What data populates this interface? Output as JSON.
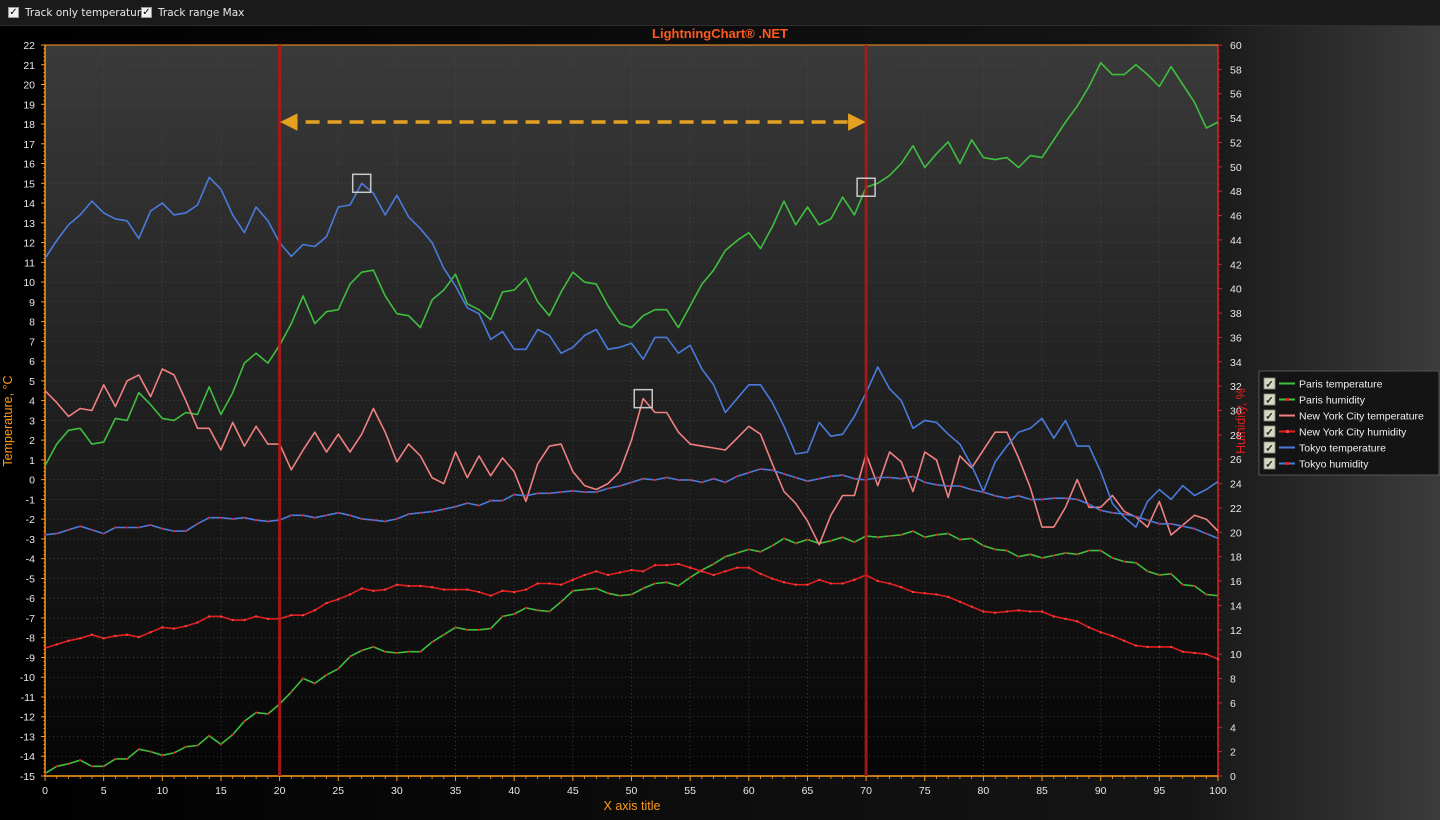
{
  "toolbar": {
    "track_temperature": {
      "label": "Track only temperature",
      "checked": true
    },
    "track_range_max": {
      "label": "Track range Max",
      "checked": true
    }
  },
  "chart_data": {
    "type": "line",
    "title": "LightningChart® .NET",
    "xlabel": "X axis title",
    "ylabel_left": "Temperature, °C",
    "ylabel_right": "Humidity, %",
    "xlim": [
      0,
      100
    ],
    "ylim_left": [
      -15,
      22
    ],
    "ylim_right": [
      0,
      60
    ],
    "x_ticks": [
      0,
      5,
      10,
      15,
      20,
      25,
      30,
      35,
      40,
      45,
      50,
      55,
      60,
      65,
      70,
      75,
      80,
      85,
      90,
      95,
      100
    ],
    "grid": true,
    "legend_position": "right",
    "cursors": [
      20,
      70
    ],
    "markers": [
      {
        "x": 27,
        "y": 15.0
      },
      {
        "x": 51,
        "y": 4.1
      },
      {
        "x": 70,
        "y": 14.8
      }
    ],
    "x": [
      0,
      1,
      2,
      3,
      4,
      5,
      6,
      7,
      8,
      9,
      10,
      11,
      12,
      13,
      14,
      15,
      16,
      17,
      18,
      19,
      20,
      21,
      22,
      23,
      24,
      25,
      26,
      27,
      28,
      29,
      30,
      31,
      32,
      33,
      34,
      35,
      36,
      37,
      38,
      39,
      40,
      41,
      42,
      43,
      44,
      45,
      46,
      47,
      48,
      49,
      50,
      51,
      52,
      53,
      54,
      55,
      56,
      57,
      58,
      59,
      60,
      61,
      62,
      63,
      64,
      65,
      66,
      67,
      68,
      69,
      70,
      71,
      72,
      73,
      74,
      75,
      76,
      77,
      78,
      79,
      80,
      81,
      82,
      83,
      84,
      85,
      86,
      87,
      88,
      89,
      90,
      91,
      92,
      93,
      94,
      95,
      96,
      97,
      98,
      99,
      100
    ],
    "series": [
      {
        "name": "Paris temperature",
        "axis": "left",
        "color": "#3fbf3f",
        "values": [
          0.7,
          1.8,
          2.5,
          2.6,
          1.8,
          1.9,
          3.1,
          3.0,
          4.4,
          3.8,
          3.1,
          3.0,
          3.4,
          3.3,
          4.7,
          3.3,
          4.4,
          5.9,
          6.4,
          5.9,
          6.8,
          7.9,
          9.3,
          7.9,
          8.5,
          8.6,
          9.9,
          10.5,
          10.6,
          9.3,
          8.4,
          8.3,
          7.7,
          9.1,
          9.6,
          10.4,
          8.9,
          8.6,
          8.1,
          9.5,
          9.6,
          10.2,
          9.0,
          8.3,
          9.5,
          10.5,
          10.0,
          9.9,
          8.8,
          7.9,
          7.7,
          8.3,
          8.6,
          8.6,
          7.7,
          8.8,
          9.9,
          10.6,
          11.6,
          12.1,
          12.5,
          11.7,
          12.8,
          14.1,
          12.9,
          13.8,
          12.9,
          13.2,
          14.3,
          13.4,
          14.8,
          15.0,
          15.4,
          16.0,
          16.9,
          15.8,
          16.5,
          17.1,
          16.0,
          17.2,
          16.3,
          16.2,
          16.3,
          15.8,
          16.4,
          16.3,
          17.2,
          18.1,
          18.9,
          19.9,
          21.1,
          20.5,
          20.5,
          21.0,
          20.5,
          19.9,
          20.9,
          20.0,
          19.1,
          17.8,
          18.1
        ]
      },
      {
        "name": "Paris humidity",
        "axis": "right",
        "color": "#3fbf3f",
        "marker_color": "#e02020",
        "values": [
          0.2,
          0.8,
          1.0,
          1.3,
          0.8,
          0.8,
          1.4,
          1.4,
          2.2,
          2.0,
          1.7,
          1.9,
          2.4,
          2.5,
          3.3,
          2.6,
          3.4,
          4.5,
          5.2,
          5.1,
          5.9,
          6.9,
          8.0,
          7.6,
          8.3,
          8.8,
          9.8,
          10.3,
          10.6,
          10.2,
          10.1,
          10.2,
          10.2,
          11.0,
          11.6,
          12.2,
          12.0,
          12.0,
          12.1,
          13.1,
          13.3,
          13.8,
          13.6,
          13.5,
          14.3,
          15.2,
          15.3,
          15.4,
          15.0,
          14.8,
          14.9,
          15.4,
          15.8,
          15.9,
          15.6,
          16.3,
          16.9,
          17.4,
          18.0,
          18.3,
          18.6,
          18.4,
          18.9,
          19.5,
          19.1,
          19.4,
          19.1,
          19.3,
          19.6,
          19.2,
          19.7,
          19.6,
          19.7,
          19.8,
          20.1,
          19.6,
          19.8,
          19.9,
          19.4,
          19.5,
          18.9,
          18.6,
          18.5,
          18.0,
          18.2,
          17.9,
          18.1,
          18.3,
          18.2,
          18.5,
          18.5,
          17.9,
          17.6,
          17.5,
          16.8,
          16.5,
          16.6,
          15.7,
          15.6,
          14.9,
          14.8
        ]
      },
      {
        "name": "New York City temperature",
        "axis": "left",
        "color": "#f08080",
        "values": [
          4.5,
          3.9,
          3.2,
          3.6,
          3.5,
          4.8,
          3.7,
          5.0,
          5.3,
          4.2,
          5.6,
          5.3,
          4.0,
          2.6,
          2.6,
          1.5,
          2.9,
          1.7,
          2.7,
          1.8,
          1.8,
          0.5,
          1.5,
          2.4,
          1.4,
          2.3,
          1.4,
          2.3,
          3.6,
          2.4,
          0.9,
          1.8,
          1.2,
          0.1,
          -0.2,
          1.4,
          0.1,
          1.2,
          0.2,
          1.1,
          0.4,
          -1.1,
          0.8,
          1.7,
          1.8,
          0.4,
          -0.3,
          -0.5,
          -0.2,
          0.4,
          2.0,
          4.1,
          3.4,
          3.4,
          2.4,
          1.8,
          1.7,
          1.6,
          1.5,
          2.1,
          2.7,
          2.3,
          0.8,
          -0.6,
          -1.2,
          -2.1,
          -3.3,
          -1.8,
          -0.8,
          -0.8,
          1.3,
          -0.3,
          1.4,
          0.9,
          -0.6,
          1.4,
          1.0,
          -0.9,
          1.2,
          0.6,
          1.5,
          2.4,
          2.4,
          1.1,
          -0.4,
          -2.4,
          -2.4,
          -1.4,
          0.0,
          -1.4,
          -1.4,
          -0.8,
          -1.6,
          -1.9,
          -2.4,
          -1.1,
          -2.8,
          -2.3,
          -1.8,
          -2.0,
          -2.6
        ]
      },
      {
        "name": "New York City humidity",
        "axis": "right",
        "color": "#e02020",
        "marker_color": "#ff4040",
        "values": [
          10.5,
          10.8,
          11.1,
          11.3,
          11.6,
          11.3,
          11.5,
          11.6,
          11.4,
          11.8,
          12.2,
          12.1,
          12.3,
          12.6,
          13.1,
          13.1,
          12.8,
          12.8,
          13.1,
          12.9,
          12.9,
          13.2,
          13.2,
          13.6,
          14.2,
          14.5,
          14.9,
          15.4,
          15.2,
          15.3,
          15.7,
          15.6,
          15.6,
          15.5,
          15.3,
          15.3,
          15.3,
          15.1,
          14.8,
          15.2,
          15.1,
          15.3,
          15.8,
          15.8,
          15.7,
          16.1,
          16.5,
          16.8,
          16.5,
          16.7,
          16.9,
          16.8,
          17.3,
          17.3,
          17.4,
          17.1,
          16.8,
          16.5,
          16.8,
          17.1,
          17.1,
          16.6,
          16.2,
          15.9,
          15.7,
          15.7,
          16.1,
          15.8,
          15.8,
          16.1,
          16.5,
          16.0,
          15.8,
          15.5,
          15.1,
          15.0,
          14.9,
          14.7,
          14.3,
          13.9,
          13.5,
          13.4,
          13.5,
          13.6,
          13.5,
          13.5,
          13.1,
          12.9,
          12.7,
          12.2,
          11.8,
          11.5,
          11.1,
          10.7,
          10.6,
          10.6,
          10.6,
          10.2,
          10.1,
          10.0,
          9.6
        ]
      },
      {
        "name": "Tokyo temperature",
        "axis": "left",
        "color": "#4a7bdc",
        "values": [
          11.2,
          12.1,
          12.9,
          13.4,
          14.1,
          13.5,
          13.2,
          13.1,
          12.2,
          13.6,
          14.0,
          13.4,
          13.5,
          13.9,
          15.3,
          14.7,
          13.4,
          12.5,
          13.8,
          13.1,
          12.0,
          11.3,
          11.9,
          11.8,
          12.3,
          13.8,
          13.9,
          15.0,
          14.5,
          13.4,
          14.4,
          13.3,
          12.7,
          12.0,
          10.7,
          9.8,
          8.7,
          8.4,
          7.1,
          7.5,
          6.6,
          6.6,
          7.6,
          7.3,
          6.4,
          6.7,
          7.3,
          7.6,
          6.6,
          6.7,
          6.9,
          6.1,
          7.2,
          7.2,
          6.4,
          6.8,
          5.6,
          4.8,
          3.4,
          4.1,
          4.8,
          4.8,
          3.9,
          2.7,
          1.3,
          1.4,
          2.9,
          2.2,
          2.3,
          3.2,
          4.4,
          5.7,
          4.6,
          4.0,
          2.6,
          3.0,
          2.9,
          2.3,
          1.8,
          0.7,
          -0.6,
          0.9,
          1.7,
          2.4,
          2.6,
          3.1,
          2.1,
          3.0,
          1.7,
          1.7,
          0.4,
          -1.2,
          -1.9,
          -2.4,
          -1.1,
          -0.5,
          -1.0,
          -0.3,
          -0.8,
          -0.5,
          -0.1
        ]
      },
      {
        "name": "Tokyo humidity",
        "axis": "right",
        "color": "#4a7bdc",
        "marker_color": "#e02020",
        "values": [
          19.8,
          19.9,
          20.2,
          20.5,
          20.2,
          19.9,
          20.4,
          20.4,
          20.4,
          20.6,
          20.3,
          20.1,
          20.1,
          20.7,
          21.2,
          21.2,
          21.1,
          21.2,
          21.0,
          20.9,
          21.0,
          21.4,
          21.4,
          21.2,
          21.4,
          21.6,
          21.4,
          21.1,
          21.0,
          20.9,
          21.1,
          21.5,
          21.6,
          21.7,
          21.9,
          22.1,
          22.4,
          22.2,
          22.6,
          22.6,
          23.1,
          23.0,
          23.2,
          23.2,
          23.3,
          23.4,
          23.3,
          23.3,
          23.6,
          23.8,
          24.1,
          24.4,
          24.3,
          24.5,
          24.3,
          24.3,
          24.1,
          24.4,
          24.1,
          24.6,
          24.9,
          25.2,
          25.1,
          24.8,
          24.5,
          24.2,
          24.4,
          24.6,
          24.7,
          24.4,
          24.3,
          24.5,
          24.5,
          24.4,
          24.6,
          24.1,
          23.9,
          23.8,
          23.8,
          23.5,
          23.3,
          23.0,
          22.8,
          23.0,
          22.7,
          22.7,
          22.8,
          22.8,
          22.7,
          22.3,
          21.8,
          21.6,
          21.5,
          21.3,
          21.0,
          20.7,
          20.7,
          20.5,
          20.3,
          19.9,
          19.5
        ]
      }
    ]
  }
}
